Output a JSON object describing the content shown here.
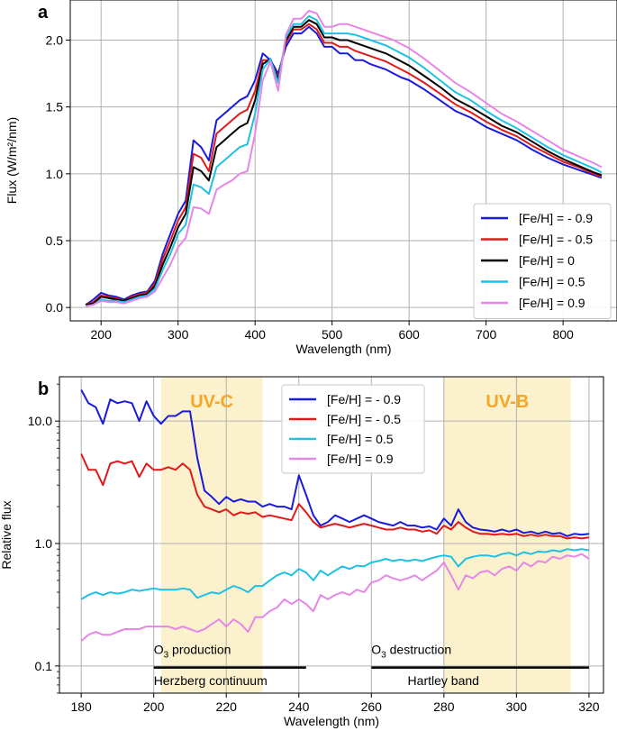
{
  "chart_data": [
    {
      "panel_label": "a",
      "type": "line",
      "xlabel": "Wavelength (nm)",
      "ylabel": "Flux (W/m²/nm)",
      "xlim": [
        160,
        870
      ],
      "ylim": [
        -0.1,
        2.3
      ],
      "xticks": [
        "200",
        "300",
        "400",
        "500",
        "600",
        "700",
        "800"
      ],
      "yticks": [
        "0.0",
        "0.5",
        "1.0",
        "1.5",
        "2.0"
      ],
      "grid": true,
      "legend_position": "lower-right",
      "x": [
        180,
        190,
        200,
        210,
        220,
        230,
        240,
        250,
        260,
        270,
        280,
        290,
        300,
        310,
        320,
        330,
        340,
        350,
        360,
        370,
        380,
        390,
        400,
        410,
        420,
        430,
        440,
        450,
        460,
        470,
        480,
        490,
        500,
        510,
        520,
        530,
        540,
        550,
        560,
        570,
        580,
        590,
        600,
        620,
        640,
        660,
        680,
        700,
        720,
        740,
        760,
        780,
        800,
        820,
        840,
        850
      ],
      "series": [
        {
          "name": "[Fe/H] = - 0.9",
          "color": "#1a1adb",
          "values": [
            0.02,
            0.06,
            0.11,
            0.09,
            0.08,
            0.06,
            0.09,
            0.11,
            0.12,
            0.2,
            0.4,
            0.55,
            0.7,
            0.8,
            1.25,
            1.2,
            1.1,
            1.4,
            1.45,
            1.5,
            1.55,
            1.58,
            1.7,
            1.9,
            1.85,
            1.75,
            1.95,
            2.05,
            2.05,
            2.1,
            2.05,
            1.95,
            1.95,
            1.9,
            1.9,
            1.85,
            1.85,
            1.82,
            1.8,
            1.78,
            1.75,
            1.72,
            1.7,
            1.63,
            1.55,
            1.47,
            1.42,
            1.35,
            1.3,
            1.25,
            1.18,
            1.12,
            1.07,
            1.03,
            0.99,
            0.97
          ]
        },
        {
          "name": "[Fe/H] = - 0.5",
          "color": "#e01a1a",
          "values": [
            0.02,
            0.04,
            0.09,
            0.08,
            0.07,
            0.05,
            0.08,
            0.1,
            0.11,
            0.18,
            0.36,
            0.5,
            0.65,
            0.75,
            1.15,
            1.12,
            1.02,
            1.3,
            1.35,
            1.4,
            1.45,
            1.48,
            1.62,
            1.85,
            1.85,
            1.72,
            1.98,
            2.08,
            2.08,
            2.12,
            2.08,
            1.98,
            1.98,
            1.95,
            1.95,
            1.92,
            1.9,
            1.88,
            1.86,
            1.84,
            1.81,
            1.78,
            1.75,
            1.68,
            1.6,
            1.52,
            1.46,
            1.39,
            1.33,
            1.28,
            1.21,
            1.15,
            1.09,
            1.05,
            1.0,
            0.98
          ]
        },
        {
          "name": "[Fe/H] = 0",
          "color": "#000000",
          "values": [
            0.02,
            0.03,
            0.08,
            0.07,
            0.06,
            0.05,
            0.07,
            0.09,
            0.1,
            0.16,
            0.32,
            0.45,
            0.6,
            0.7,
            1.05,
            1.02,
            0.95,
            1.2,
            1.25,
            1.3,
            1.35,
            1.38,
            1.55,
            1.82,
            1.86,
            1.7,
            2.0,
            2.1,
            2.1,
            2.15,
            2.12,
            2.02,
            2.02,
            2.0,
            2.0,
            1.98,
            1.96,
            1.94,
            1.92,
            1.9,
            1.87,
            1.84,
            1.81,
            1.73,
            1.65,
            1.56,
            1.5,
            1.43,
            1.36,
            1.31,
            1.24,
            1.17,
            1.11,
            1.06,
            1.01,
            0.99
          ]
        },
        {
          "name": "[Fe/H] = 0.5",
          "color": "#1ec0e6",
          "values": [
            0.01,
            0.02,
            0.06,
            0.05,
            0.05,
            0.04,
            0.06,
            0.08,
            0.09,
            0.14,
            0.28,
            0.4,
            0.55,
            0.62,
            0.92,
            0.9,
            0.85,
            1.05,
            1.1,
            1.15,
            1.2,
            1.22,
            1.45,
            1.78,
            1.86,
            1.68,
            2.02,
            2.12,
            2.12,
            2.18,
            2.15,
            2.05,
            2.05,
            2.05,
            2.05,
            2.04,
            2.02,
            2.0,
            1.98,
            1.96,
            1.93,
            1.9,
            1.87,
            1.79,
            1.7,
            1.61,
            1.55,
            1.47,
            1.4,
            1.34,
            1.27,
            1.2,
            1.14,
            1.09,
            1.04,
            1.01
          ]
        },
        {
          "name": "[Fe/H] = 0.9",
          "color": "#e686e6",
          "values": [
            0.01,
            0.02,
            0.05,
            0.04,
            0.04,
            0.03,
            0.05,
            0.07,
            0.08,
            0.12,
            0.22,
            0.32,
            0.45,
            0.52,
            0.75,
            0.74,
            0.7,
            0.88,
            0.92,
            0.95,
            1.0,
            1.02,
            1.3,
            1.7,
            1.84,
            1.62,
            2.04,
            2.16,
            2.16,
            2.22,
            2.2,
            2.1,
            2.1,
            2.12,
            2.12,
            2.1,
            2.08,
            2.06,
            2.04,
            2.02,
            2.0,
            1.97,
            1.94,
            1.86,
            1.77,
            1.68,
            1.61,
            1.53,
            1.45,
            1.39,
            1.32,
            1.25,
            1.18,
            1.13,
            1.08,
            1.05
          ]
        }
      ]
    },
    {
      "panel_label": "b",
      "type": "line",
      "xlabel": "Wavelength (nm)",
      "ylabel": "Relative flux",
      "xlim": [
        174,
        324
      ],
      "ylim": [
        0.06,
        23
      ],
      "yscale": "log",
      "xticks": [
        "180",
        "200",
        "220",
        "240",
        "260",
        "280",
        "300",
        "320"
      ],
      "yticks": [
        "0.1",
        "1.0",
        "10.0"
      ],
      "grid": true,
      "legend_position": "top-center",
      "x": [
        180,
        182,
        184,
        186,
        188,
        190,
        192,
        194,
        196,
        198,
        200,
        202,
        204,
        206,
        208,
        210,
        212,
        214,
        216,
        218,
        220,
        222,
        224,
        226,
        228,
        230,
        232,
        234,
        236,
        238,
        240,
        242,
        244,
        246,
        248,
        250,
        252,
        254,
        256,
        258,
        260,
        262,
        264,
        266,
        268,
        270,
        272,
        274,
        276,
        278,
        280,
        282,
        284,
        286,
        288,
        290,
        292,
        294,
        296,
        298,
        300,
        302,
        304,
        306,
        308,
        310,
        312,
        314,
        316,
        318,
        320
      ],
      "series": [
        {
          "name": "[Fe/H] = - 0.9",
          "color": "#1a1adb",
          "values": [
            18,
            14,
            13,
            9.5,
            15,
            14,
            14.5,
            14,
            10,
            14.5,
            11,
            9.5,
            11,
            11,
            12,
            12,
            5,
            2.7,
            2.4,
            2.1,
            2.4,
            2.2,
            2.3,
            2.2,
            2.2,
            2.0,
            2.1,
            2.0,
            2.0,
            1.9,
            3.6,
            2.5,
            1.7,
            1.4,
            1.5,
            1.7,
            1.6,
            1.5,
            1.6,
            1.7,
            1.6,
            1.5,
            1.45,
            1.4,
            1.5,
            1.4,
            1.4,
            1.35,
            1.38,
            1.3,
            1.6,
            1.4,
            1.9,
            1.5,
            1.35,
            1.3,
            1.28,
            1.25,
            1.3,
            1.25,
            1.3,
            1.22,
            1.25,
            1.2,
            1.25,
            1.2,
            1.22,
            1.15,
            1.2,
            1.18,
            1.2
          ]
        },
        {
          "name": "[Fe/H] = - 0.5",
          "color": "#e01a1a",
          "values": [
            5.4,
            4,
            4,
            3.0,
            4.5,
            4.7,
            4.5,
            4.7,
            3.5,
            4.5,
            4.0,
            4.0,
            4.2,
            4.0,
            4.5,
            4.0,
            2.5,
            2.0,
            1.9,
            1.8,
            1.9,
            1.7,
            1.8,
            1.75,
            1.8,
            1.65,
            1.7,
            1.65,
            1.6,
            1.55,
            2.1,
            1.8,
            1.5,
            1.35,
            1.4,
            1.45,
            1.4,
            1.35,
            1.4,
            1.45,
            1.4,
            1.35,
            1.3,
            1.3,
            1.35,
            1.3,
            1.3,
            1.25,
            1.28,
            1.2,
            1.4,
            1.3,
            1.5,
            1.35,
            1.25,
            1.2,
            1.2,
            1.18,
            1.2,
            1.18,
            1.2,
            1.15,
            1.18,
            1.15,
            1.18,
            1.15,
            1.15,
            1.1,
            1.12,
            1.1,
            1.12
          ]
        },
        {
          "name": "[Fe/H] = 0.5",
          "color": "#1ec0e6",
          "values": [
            0.35,
            0.38,
            0.4,
            0.38,
            0.4,
            0.39,
            0.4,
            0.42,
            0.41,
            0.42,
            0.43,
            0.42,
            0.42,
            0.42,
            0.43,
            0.42,
            0.36,
            0.38,
            0.4,
            0.39,
            0.42,
            0.45,
            0.43,
            0.4,
            0.45,
            0.45,
            0.5,
            0.55,
            0.58,
            0.55,
            0.62,
            0.58,
            0.5,
            0.6,
            0.55,
            0.6,
            0.65,
            0.62,
            0.66,
            0.65,
            0.7,
            0.72,
            0.75,
            0.72,
            0.74,
            0.72,
            0.74,
            0.72,
            0.75,
            0.78,
            0.8,
            0.78,
            0.65,
            0.75,
            0.78,
            0.8,
            0.8,
            0.78,
            0.82,
            0.84,
            0.8,
            0.85,
            0.82,
            0.86,
            0.85,
            0.88,
            0.86,
            0.9,
            0.88,
            0.9,
            0.88
          ]
        },
        {
          "name": "[Fe/H] = 0.9",
          "color": "#e686e6",
          "values": [
            0.16,
            0.18,
            0.19,
            0.18,
            0.18,
            0.19,
            0.2,
            0.2,
            0.2,
            0.21,
            0.21,
            0.21,
            0.21,
            0.2,
            0.21,
            0.2,
            0.19,
            0.2,
            0.22,
            0.24,
            0.21,
            0.24,
            0.22,
            0.19,
            0.25,
            0.25,
            0.28,
            0.3,
            0.35,
            0.32,
            0.35,
            0.32,
            0.28,
            0.38,
            0.35,
            0.38,
            0.4,
            0.38,
            0.42,
            0.4,
            0.48,
            0.5,
            0.55,
            0.52,
            0.5,
            0.52,
            0.55,
            0.5,
            0.55,
            0.6,
            0.7,
            0.55,
            0.42,
            0.55,
            0.52,
            0.58,
            0.6,
            0.55,
            0.62,
            0.65,
            0.6,
            0.7,
            0.65,
            0.72,
            0.7,
            0.78,
            0.75,
            0.8,
            0.78,
            0.82,
            0.75
          ]
        }
      ],
      "bands": [
        {
          "label": "UV-C",
          "x_range": [
            202,
            230
          ],
          "color": "#fbf2cd",
          "text_color": "#f5a623"
        },
        {
          "label": "UV-B",
          "x_range": [
            280,
            315
          ],
          "color": "#fbf2cd",
          "text_color": "#f5a623"
        }
      ],
      "annotations": [
        {
          "text_main": "O",
          "text_sub": "3",
          "text_after": " production",
          "x": 200,
          "y": 0.125
        },
        {
          "text": "Herzberg continuum",
          "x": 200,
          "y": 0.07
        },
        {
          "text_main": "O",
          "text_sub": "3",
          "text_after": " destruction",
          "x": 260,
          "y": 0.125
        },
        {
          "text": "Hartley band",
          "x": 270,
          "y": 0.07
        }
      ],
      "bars": [
        {
          "x_range": [
            200,
            242
          ],
          "y": 0.097
        },
        {
          "x_range": [
            260,
            320
          ],
          "y": 0.097
        }
      ]
    }
  ]
}
